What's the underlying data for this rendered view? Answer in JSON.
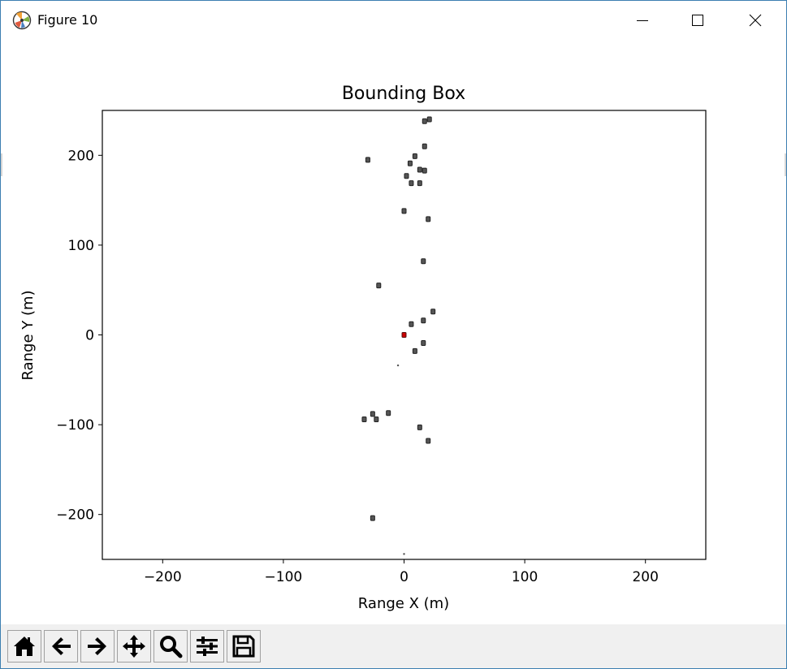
{
  "window": {
    "title": "Figure 10",
    "app_icon": "matplotlib-logo-icon",
    "controls": [
      "minimize-icon",
      "maximize-icon",
      "close-icon"
    ]
  },
  "chart_data": {
    "type": "scatter",
    "title": "Bounding Box",
    "xlabel": "Range X (m)",
    "ylabel": "Range Y (m)",
    "xlim": [
      -250,
      250
    ],
    "ylim": [
      -250,
      250
    ],
    "xticks": [
      -200,
      -100,
      0,
      100,
      200
    ],
    "yticks": [
      -200,
      -100,
      0,
      100,
      200
    ],
    "xtick_labels": [
      "−200",
      "−100",
      "0",
      "100",
      "200"
    ],
    "ytick_labels": [
      "−200",
      "−100",
      "0",
      "100",
      "200"
    ],
    "grid": false,
    "legend": "none",
    "box_color": "#222222",
    "ego_color": "#cc0000",
    "boxes": [
      {
        "x": 17,
        "y": 238
      },
      {
        "x": 21,
        "y": 240
      },
      {
        "x": 17,
        "y": 210
      },
      {
        "x": -30,
        "y": 195
      },
      {
        "x": 9,
        "y": 199
      },
      {
        "x": 5,
        "y": 191
      },
      {
        "x": 13,
        "y": 184
      },
      {
        "x": 17,
        "y": 183
      },
      {
        "x": 2,
        "y": 177
      },
      {
        "x": 6,
        "y": 169
      },
      {
        "x": 13,
        "y": 169
      },
      {
        "x": 0,
        "y": 138
      },
      {
        "x": 20,
        "y": 129
      },
      {
        "x": 16,
        "y": 82
      },
      {
        "x": -21,
        "y": 55
      },
      {
        "x": 24,
        "y": 26
      },
      {
        "x": 16,
        "y": 16
      },
      {
        "x": 6,
        "y": 12
      },
      {
        "x": 16,
        "y": -9
      },
      {
        "x": 9,
        "y": -18
      },
      {
        "x": -13,
        "y": -87
      },
      {
        "x": -26,
        "y": -88
      },
      {
        "x": -23,
        "y": -94
      },
      {
        "x": -33,
        "y": -94
      },
      {
        "x": 13,
        "y": -103
      },
      {
        "x": 20,
        "y": -118
      },
      {
        "x": -26,
        "y": -204
      }
    ],
    "ego": {
      "x": 0,
      "y": 0
    },
    "small_marks": [
      {
        "x": -5,
        "y": -34
      },
      {
        "x": 0,
        "y": -244
      }
    ]
  },
  "toolbar": {
    "tools": [
      {
        "name": "home-icon",
        "label": "Home"
      },
      {
        "name": "back-arrow-icon",
        "label": "Back"
      },
      {
        "name": "forward-arrow-icon",
        "label": "Forward"
      },
      {
        "name": "pan-icon",
        "label": "Pan"
      },
      {
        "name": "zoom-icon",
        "label": "Zoom"
      },
      {
        "name": "configure-subplots-icon",
        "label": "Subplots"
      },
      {
        "name": "save-icon",
        "label": "Save"
      }
    ]
  }
}
